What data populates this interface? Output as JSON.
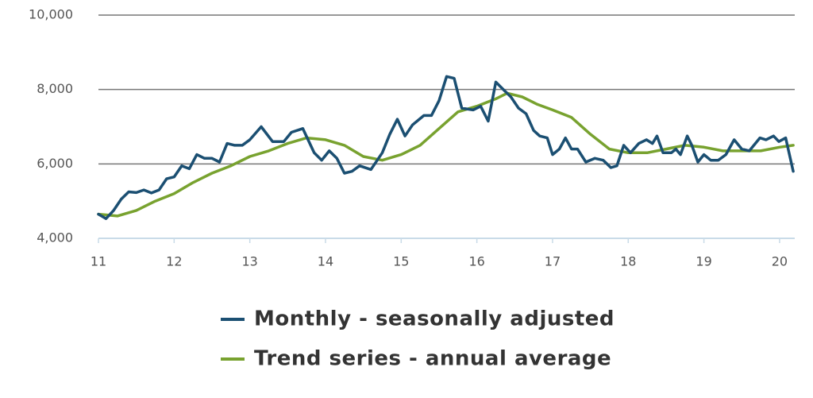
{
  "chart_data": {
    "type": "line",
    "xlim": [
      11,
      20.2
    ],
    "xticks": [
      11,
      12,
      13,
      14,
      15,
      16,
      17,
      18,
      19,
      20
    ],
    "ylim": [
      4000,
      10000
    ],
    "yticks": [
      {
        "value": 4000,
        "label": "4,000"
      },
      {
        "value": 6000,
        "label": "6,000"
      },
      {
        "value": 8000,
        "label": "8,000"
      },
      {
        "value": 10000,
        "label": "10,000"
      }
    ],
    "grid": true,
    "series": [
      {
        "name": "Monthly - seasonally adjusted",
        "color": "#1b4f72",
        "x": [
          11.0,
          11.1,
          11.2,
          11.3,
          11.4,
          11.5,
          11.6,
          11.7,
          11.8,
          11.9,
          12.0,
          12.1,
          12.2,
          12.3,
          12.4,
          12.5,
          12.6,
          12.7,
          12.8,
          12.9,
          13.0,
          13.15,
          13.3,
          13.45,
          13.55,
          13.7,
          13.85,
          13.95,
          14.05,
          14.15,
          14.25,
          14.35,
          14.45,
          14.6,
          14.75,
          14.85,
          14.95,
          15.05,
          15.15,
          15.3,
          15.4,
          15.5,
          15.6,
          15.7,
          15.8,
          15.95,
          16.05,
          16.15,
          16.25,
          16.35,
          16.45,
          16.55,
          16.65,
          16.75,
          16.83,
          16.93,
          17.0,
          17.09,
          17.17,
          17.25,
          17.33,
          17.44,
          17.56,
          17.67,
          17.77,
          17.85,
          17.94,
          18.03,
          18.14,
          18.24,
          18.32,
          18.38,
          18.46,
          18.57,
          18.63,
          18.69,
          18.78,
          18.84,
          18.92,
          19.0,
          19.09,
          19.19,
          19.29,
          19.4,
          19.5,
          19.6,
          19.74,
          19.82,
          19.92,
          19.99,
          20.08,
          20.18
        ],
        "values": [
          4650,
          4530,
          4750,
          5050,
          5250,
          5230,
          5300,
          5220,
          5300,
          5600,
          5650,
          5950,
          5870,
          6250,
          6150,
          6150,
          6050,
          6550,
          6500,
          6500,
          6650,
          7000,
          6600,
          6600,
          6850,
          6950,
          6300,
          6100,
          6350,
          6150,
          5750,
          5800,
          5950,
          5850,
          6300,
          6800,
          7200,
          6750,
          7050,
          7300,
          7300,
          7700,
          8350,
          8300,
          7500,
          7450,
          7550,
          7150,
          8200,
          8000,
          7800,
          7500,
          7350,
          6900,
          6750,
          6700,
          6250,
          6400,
          6700,
          6400,
          6400,
          6050,
          6150,
          6100,
          5900,
          5950,
          6500,
          6300,
          6550,
          6650,
          6550,
          6750,
          6300,
          6300,
          6400,
          6250,
          6750,
          6500,
          6050,
          6250,
          6100,
          6100,
          6250,
          6650,
          6400,
          6350,
          6700,
          6650,
          6750,
          6600,
          6700,
          5800
        ]
      },
      {
        "name": "Trend series - annual average",
        "color": "#78a22f",
        "x": [
          11.0,
          11.25,
          11.5,
          11.75,
          12.0,
          12.25,
          12.5,
          12.75,
          13.0,
          13.25,
          13.5,
          13.75,
          14.0,
          14.25,
          14.5,
          14.75,
          15.0,
          15.25,
          15.5,
          15.75,
          16.0,
          16.25,
          16.4,
          16.6,
          16.8,
          17.0,
          17.25,
          17.5,
          17.75,
          18.0,
          18.25,
          18.5,
          18.75,
          19.0,
          19.25,
          19.5,
          19.75,
          20.0,
          20.18
        ],
        "values": [
          4650,
          4600,
          4750,
          5000,
          5200,
          5500,
          5750,
          5950,
          6200,
          6350,
          6550,
          6700,
          6650,
          6500,
          6200,
          6100,
          6250,
          6500,
          6950,
          7400,
          7550,
          7750,
          7900,
          7800,
          7600,
          7450,
          7250,
          6800,
          6400,
          6300,
          6300,
          6400,
          6500,
          6450,
          6350,
          6350,
          6350,
          6450,
          6500
        ]
      }
    ]
  }
}
